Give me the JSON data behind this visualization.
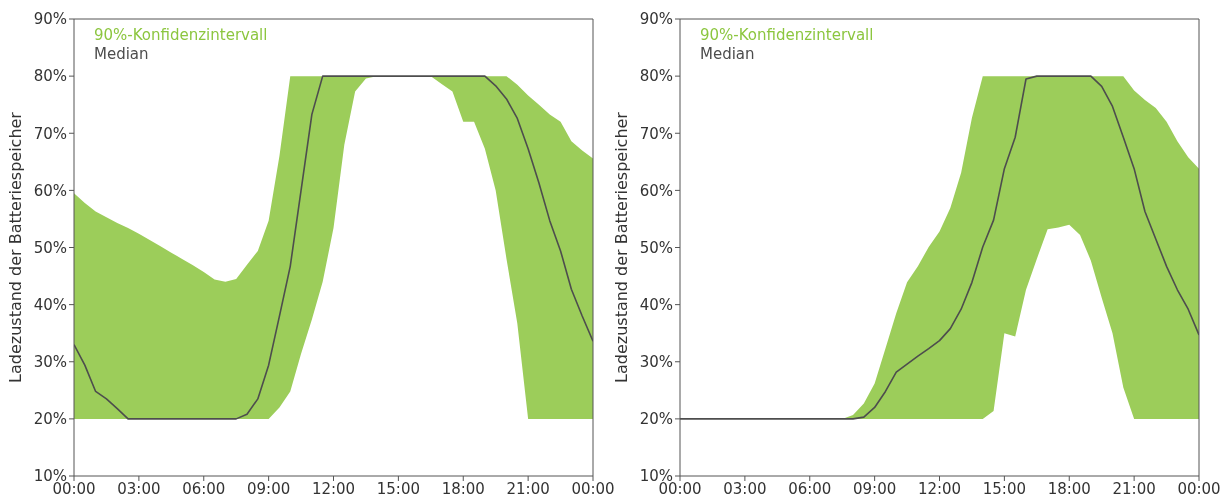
{
  "chart_data": [
    {
      "type": "line",
      "ylabel": "Ladezustand der Batteriespeicher",
      "xlim": [
        0,
        24
      ],
      "ylim": [
        10,
        90
      ],
      "xticks": [
        {
          "value": 0,
          "label": "00:00"
        },
        {
          "value": 3,
          "label": "03:00"
        },
        {
          "value": 6,
          "label": "06:00"
        },
        {
          "value": 9,
          "label": "09:00"
        },
        {
          "value": 12,
          "label": "12:00"
        },
        {
          "value": 15,
          "label": "15:00"
        },
        {
          "value": 18,
          "label": "18:00"
        },
        {
          "value": 21,
          "label": "21:00"
        },
        {
          "value": 24,
          "label": "00:00"
        }
      ],
      "yticks": [
        {
          "value": 10,
          "label": "10%"
        },
        {
          "value": 20,
          "label": "20%"
        },
        {
          "value": 30,
          "label": "30%"
        },
        {
          "value": 40,
          "label": "40%"
        },
        {
          "value": 50,
          "label": "50%"
        },
        {
          "value": 60,
          "label": "60%"
        },
        {
          "value": 70,
          "label": "70%"
        },
        {
          "value": 80,
          "label": "80%"
        },
        {
          "value": 90,
          "label": "90%"
        }
      ],
      "grid": false,
      "legend": "top left",
      "annotations": [
        "90%-Konfidenzintervall"
      ],
      "series": [
        {
          "name": "Median",
          "color": "#4d4d4d",
          "x": [
            0,
            0.5,
            1,
            1.5,
            2,
            2.5,
            3,
            3.5,
            4,
            4.5,
            5,
            5.5,
            6,
            6.5,
            7,
            7.5,
            8,
            8.5,
            9,
            9.5,
            10,
            10.5,
            11,
            11.5,
            12,
            12.5,
            13,
            13.5,
            14,
            14.5,
            15,
            15.5,
            16,
            16.5,
            17,
            17.5,
            18,
            18.5,
            19,
            19.5,
            20,
            20.5,
            21,
            21.5,
            22,
            22.5,
            23,
            23.5,
            24
          ],
          "values": [
            33,
            29.4,
            24.8,
            23.5,
            21.8,
            20,
            20,
            20,
            20,
            20,
            20,
            20,
            20,
            20,
            20,
            20,
            20.8,
            23.5,
            29.4,
            38,
            46.7,
            60,
            73.3,
            80,
            80,
            80,
            80,
            80,
            80,
            80,
            80,
            80,
            80,
            80,
            80,
            80,
            80,
            80,
            80,
            78.3,
            76,
            72.6,
            67.3,
            61.3,
            54.7,
            49.4,
            42.7,
            38,
            33.6
          ],
          "lower": [
            20,
            20,
            20,
            20,
            20,
            20,
            20,
            20,
            20,
            20,
            20,
            20,
            20,
            20,
            20,
            20,
            20,
            20,
            20,
            22,
            24.8,
            31.4,
            37.4,
            44,
            53.4,
            68,
            77.3,
            79.6,
            80,
            80,
            80,
            80,
            80,
            80,
            78.6,
            77.3,
            72,
            72,
            67.3,
            60,
            48,
            36.7,
            20,
            20,
            20,
            20,
            20,
            20,
            20
          ],
          "upper": [
            59.5,
            57.8,
            56.3,
            55.3,
            54.3,
            53.4,
            52.4,
            51.3,
            50.2,
            49.1,
            48,
            46.9,
            45.7,
            44.4,
            44,
            44.5,
            47,
            49.4,
            54.7,
            66,
            80,
            80,
            80,
            80,
            80,
            80,
            80,
            80,
            80,
            80,
            80,
            80,
            80,
            80,
            80,
            80,
            80,
            80,
            80,
            80,
            80,
            78.5,
            76.6,
            75,
            73.3,
            72,
            68.6,
            67,
            65.6
          ]
        }
      ]
    },
    {
      "type": "line",
      "ylabel": "Ladezustand der Batteriespeicher",
      "xlim": [
        0,
        24
      ],
      "ylim": [
        10,
        90
      ],
      "xticks": [
        {
          "value": 0,
          "label": "00:00"
        },
        {
          "value": 3,
          "label": "03:00"
        },
        {
          "value": 6,
          "label": "06:00"
        },
        {
          "value": 9,
          "label": "09:00"
        },
        {
          "value": 12,
          "label": "12:00"
        },
        {
          "value": 15,
          "label": "15:00"
        },
        {
          "value": 18,
          "label": "18:00"
        },
        {
          "value": 21,
          "label": "21:00"
        },
        {
          "value": 24,
          "label": "00:00"
        }
      ],
      "yticks": [
        {
          "value": 10,
          "label": "10%"
        },
        {
          "value": 20,
          "label": "20%"
        },
        {
          "value": 30,
          "label": "30%"
        },
        {
          "value": 40,
          "label": "40%"
        },
        {
          "value": 50,
          "label": "50%"
        },
        {
          "value": 60,
          "label": "60%"
        },
        {
          "value": 70,
          "label": "70%"
        },
        {
          "value": 80,
          "label": "80%"
        },
        {
          "value": 90,
          "label": "90%"
        }
      ],
      "grid": false,
      "legend": "top left",
      "annotations": [
        "90%-Konfidenzintervall"
      ],
      "series": [
        {
          "name": "Median",
          "color": "#4d4d4d",
          "x": [
            0,
            0.5,
            1,
            1.5,
            2,
            2.5,
            3,
            3.5,
            4,
            4.5,
            5,
            5.5,
            6,
            6.5,
            7,
            7.5,
            8,
            8.5,
            9,
            9.5,
            10,
            10.5,
            11,
            11.5,
            12,
            12.5,
            13,
            13.5,
            14,
            14.5,
            15,
            15.5,
            16,
            16.5,
            17,
            17.5,
            18,
            18.5,
            19,
            19.5,
            20,
            20.5,
            21,
            21.5,
            22,
            22.5,
            23,
            23.5,
            24
          ],
          "values": [
            20,
            20,
            20,
            20,
            20,
            20,
            20,
            20,
            20,
            20,
            20,
            20,
            20,
            20,
            20,
            20,
            20,
            20.3,
            22,
            24.8,
            28.2,
            29.6,
            31,
            32.3,
            33.7,
            35.8,
            39.2,
            43.9,
            50.1,
            54.8,
            63.8,
            69.3,
            79.5,
            80,
            80,
            80,
            80,
            80,
            80,
            78.2,
            74.7,
            69.3,
            63.8,
            56.3,
            51.5,
            46.7,
            42.6,
            39.2,
            34.7
          ],
          "lower": [
            20,
            20,
            20,
            20,
            20,
            20,
            20,
            20,
            20,
            20,
            20,
            20,
            20,
            20,
            20,
            20,
            20,
            20,
            20,
            20,
            20,
            20,
            20,
            20,
            20,
            20,
            20,
            20,
            20,
            21.4,
            35,
            34.4,
            42.6,
            48,
            53.2,
            53.5,
            54,
            52.2,
            47.7,
            41.2,
            35,
            25.5,
            20,
            20,
            20,
            20,
            20,
            20,
            20
          ],
          "upper": [
            20,
            20,
            20,
            20,
            20,
            20,
            20,
            20,
            20,
            20,
            20,
            20,
            20,
            20,
            20,
            20,
            20.7,
            22.7,
            26.2,
            32.3,
            38.5,
            43.9,
            46.7,
            50.1,
            52.8,
            56.9,
            63.1,
            72.7,
            80,
            80,
            80,
            80,
            80,
            80,
            80,
            80,
            80,
            80,
            80,
            80,
            80,
            80,
            77.5,
            75.8,
            74.4,
            72,
            68.6,
            65.8,
            63.8
          ]
        }
      ]
    }
  ]
}
